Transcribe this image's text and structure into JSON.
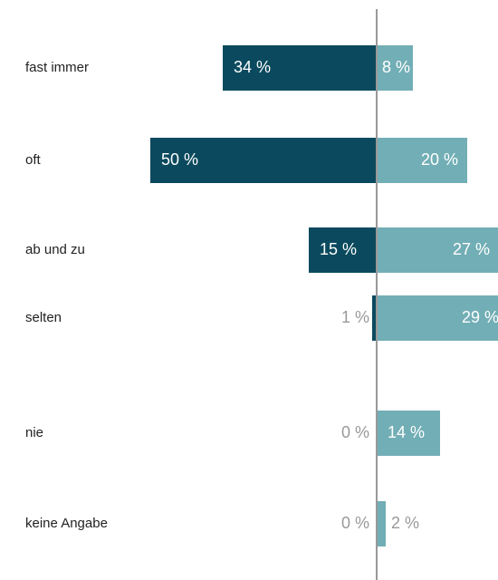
{
  "chart_data": {
    "type": "diverging-bar",
    "categories": [
      "fast immer",
      "oft",
      "ab und zu",
      "selten",
      "nie",
      "keine Angabe"
    ],
    "series": [
      {
        "color": "#0b4a5e",
        "values": [
          34,
          50,
          15,
          1,
          0,
          0
        ],
        "value_labels": [
          "34 %",
          "50 %",
          "15 %",
          "1 %",
          "0 %",
          "0 %"
        ]
      },
      {
        "color": "#72aeb5",
        "values": [
          8,
          20,
          27,
          29,
          14,
          2
        ],
        "value_labels": [
          "8 %",
          "20 %",
          "27 %",
          "29 %",
          "14 %",
          "2 %"
        ]
      }
    ]
  }
}
